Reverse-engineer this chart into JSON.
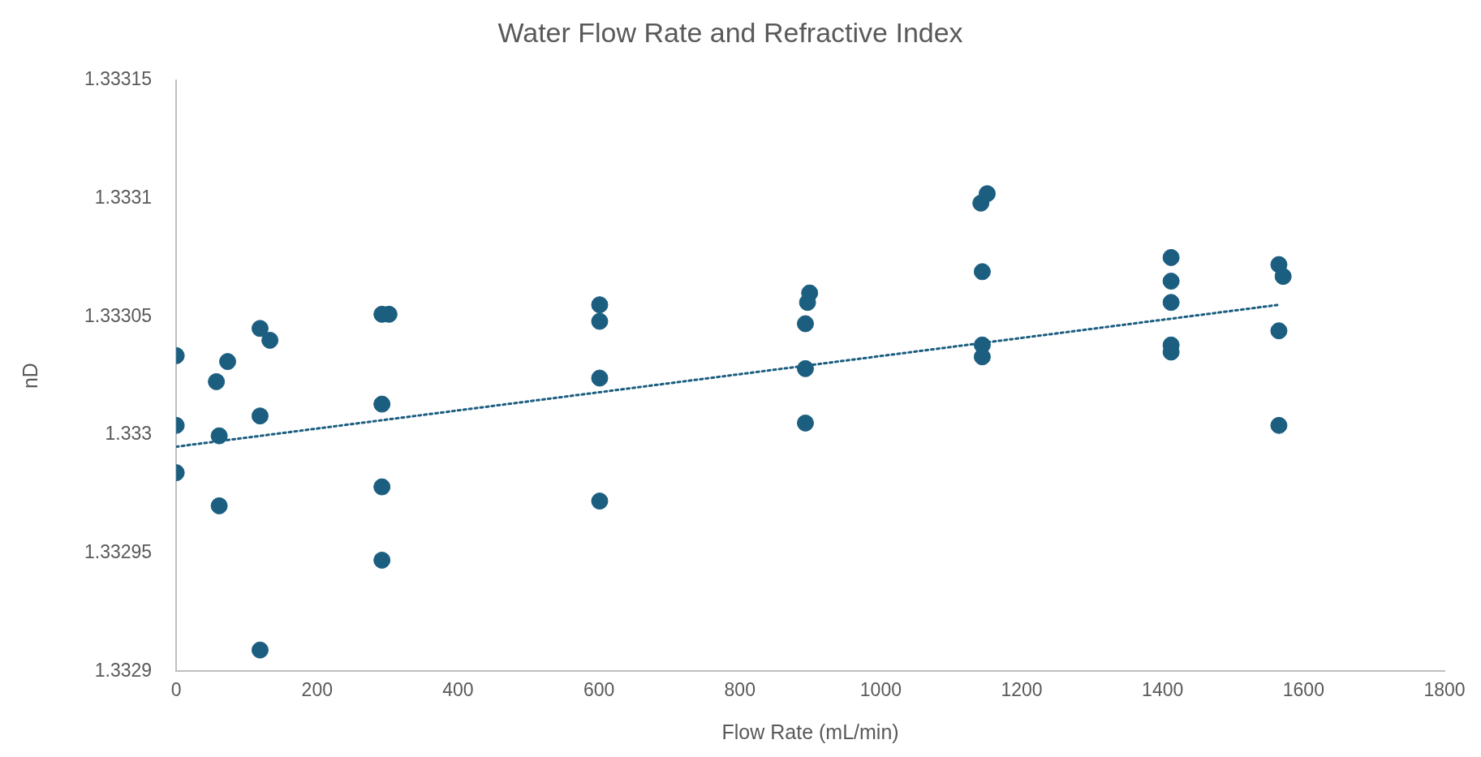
{
  "chart_data": {
    "type": "scatter",
    "title": "Water Flow Rate and Refractive Index",
    "xlabel": "Flow Rate (mL/min)",
    "ylabel": "nD",
    "xlim": [
      0,
      1800
    ],
    "xticks": [
      0,
      200,
      400,
      600,
      800,
      1000,
      1200,
      1400,
      1600,
      1800
    ],
    "ylim": [
      1.3329,
      1.33315
    ],
    "yticks": [
      1.3329,
      1.33295,
      1.333,
      1.33305,
      1.3331,
      1.33315
    ],
    "grid": false,
    "legend": false,
    "marker": "circle",
    "series": [
      {
        "type": "scatter",
        "color": "#1b5e80",
        "x": [
          0,
          0,
          0,
          57,
          73,
          61,
          61,
          119,
          119,
          119,
          133,
          292,
          292,
          292,
          292,
          302,
          601,
          601,
          601,
          601,
          893,
          893,
          893,
          896,
          899,
          1142,
          1144,
          1144,
          1144,
          1151,
          1412,
          1412,
          1412,
          1412,
          1412,
          1565,
          1565,
          1565,
          1571
        ],
        "values": [
          1.3330335,
          1.333004,
          1.332984,
          1.3330225,
          1.333031,
          1.3329996,
          1.33297,
          1.333045,
          1.333008,
          1.332909,
          1.33304,
          1.333051,
          1.333013,
          1.332978,
          1.332947,
          1.333051,
          1.333055,
          1.333048,
          1.333024,
          1.332972,
          1.333047,
          1.333028,
          1.333005,
          1.333056,
          1.33306,
          1.333098,
          1.333069,
          1.333038,
          1.333033,
          1.333102,
          1.333075,
          1.333065,
          1.333056,
          1.333038,
          1.333035,
          1.333072,
          1.333044,
          1.333004,
          1.333067
        ]
      },
      {
        "type": "line",
        "color": "#1b5e80",
        "line_style": "dotted",
        "marker": "none",
        "x": [
          0,
          1565
        ],
        "values": [
          1.332995,
          1.333055
        ]
      }
    ]
  }
}
